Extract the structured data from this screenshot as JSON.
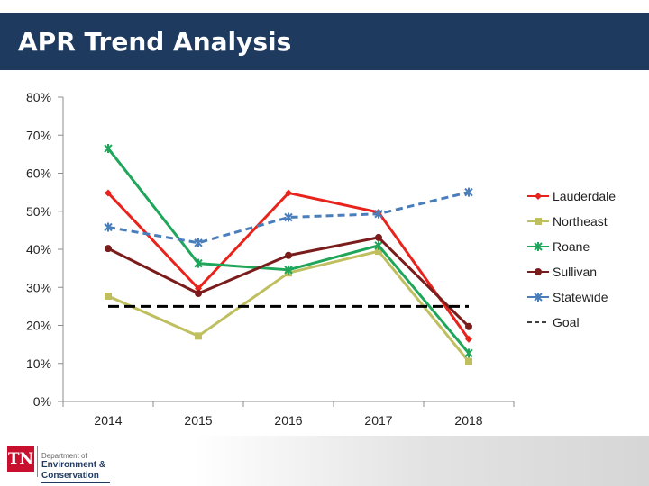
{
  "header": {
    "title": "APR Trend Analysis"
  },
  "logo": {
    "mark": "TN",
    "line1": "Department of",
    "line2": "Environment &",
    "line3": "Conservation"
  },
  "chart_data": {
    "type": "line",
    "title": "",
    "xlabel": "",
    "ylabel": "",
    "categories": [
      "2014",
      "2015",
      "2016",
      "2017",
      "2018"
    ],
    "ylim": [
      0,
      0.8
    ],
    "yticks": [
      "0%",
      "10%",
      "20%",
      "30%",
      "40%",
      "50%",
      "60%",
      "70%",
      "80%"
    ],
    "grid": false,
    "legend": "right",
    "series": [
      {
        "name": "Lauderdale",
        "color": "#e8231c",
        "marker": "diamond",
        "dash": "solid",
        "values": [
          0.548,
          0.297,
          0.548,
          0.497,
          0.164
        ]
      },
      {
        "name": "Northeast",
        "color": "#bfbf60",
        "marker": "square",
        "dash": "solid",
        "values": [
          0.277,
          0.172,
          0.338,
          0.395,
          0.105
        ]
      },
      {
        "name": "Roane",
        "color": "#1fa65a",
        "marker": "star",
        "dash": "solid",
        "values": [
          0.665,
          0.363,
          0.346,
          0.41,
          0.127
        ]
      },
      {
        "name": "Sullivan",
        "color": "#7b1c1c",
        "marker": "circle",
        "dash": "solid",
        "values": [
          0.402,
          0.284,
          0.384,
          0.431,
          0.197
        ]
      },
      {
        "name": "Statewide",
        "color": "#4a7ebb",
        "marker": "star",
        "dash": "dashed",
        "values": [
          0.458,
          0.417,
          0.484,
          0.493,
          0.55
        ]
      },
      {
        "name": "Goal",
        "color": "#000000",
        "marker": "none",
        "dash": "dashed",
        "values": [
          0.25,
          0.25,
          0.25,
          0.25,
          0.25
        ]
      }
    ]
  }
}
